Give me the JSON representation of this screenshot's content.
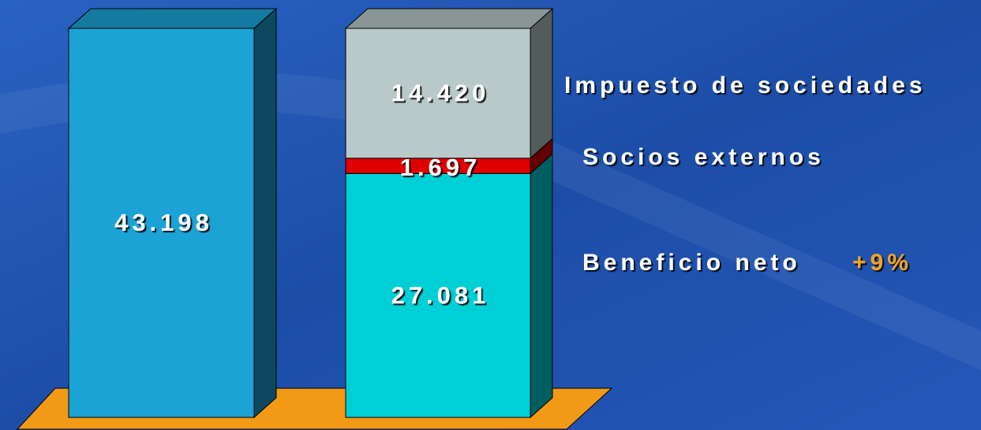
{
  "chart_data": {
    "type": "bar",
    "stacked": true,
    "three_d": true,
    "categories": [
      null,
      null
    ],
    "series": [
      {
        "color": "#1ba3d6",
        "values": [
          43198,
          null
        ],
        "value_labels": [
          "43.198",
          null
        ]
      },
      {
        "name": "Beneficio neto",
        "color": "#00cfd6",
        "values": [
          null,
          27081
        ],
        "value_labels": [
          null,
          "27.081"
        ],
        "annotation": "+9%",
        "annotation_color": "#f4a226"
      },
      {
        "name": "Socios externos",
        "color": "#e00000",
        "values": [
          null,
          1697
        ],
        "value_labels": [
          null,
          "1.697"
        ]
      },
      {
        "name": "Impuesto de sociedades",
        "color": "#b9c9c9",
        "values": [
          null,
          14420
        ],
        "value_labels": [
          null,
          "14.420"
        ]
      }
    ],
    "floor_color": "#f29a16",
    "background_color": "#1f52ad"
  }
}
